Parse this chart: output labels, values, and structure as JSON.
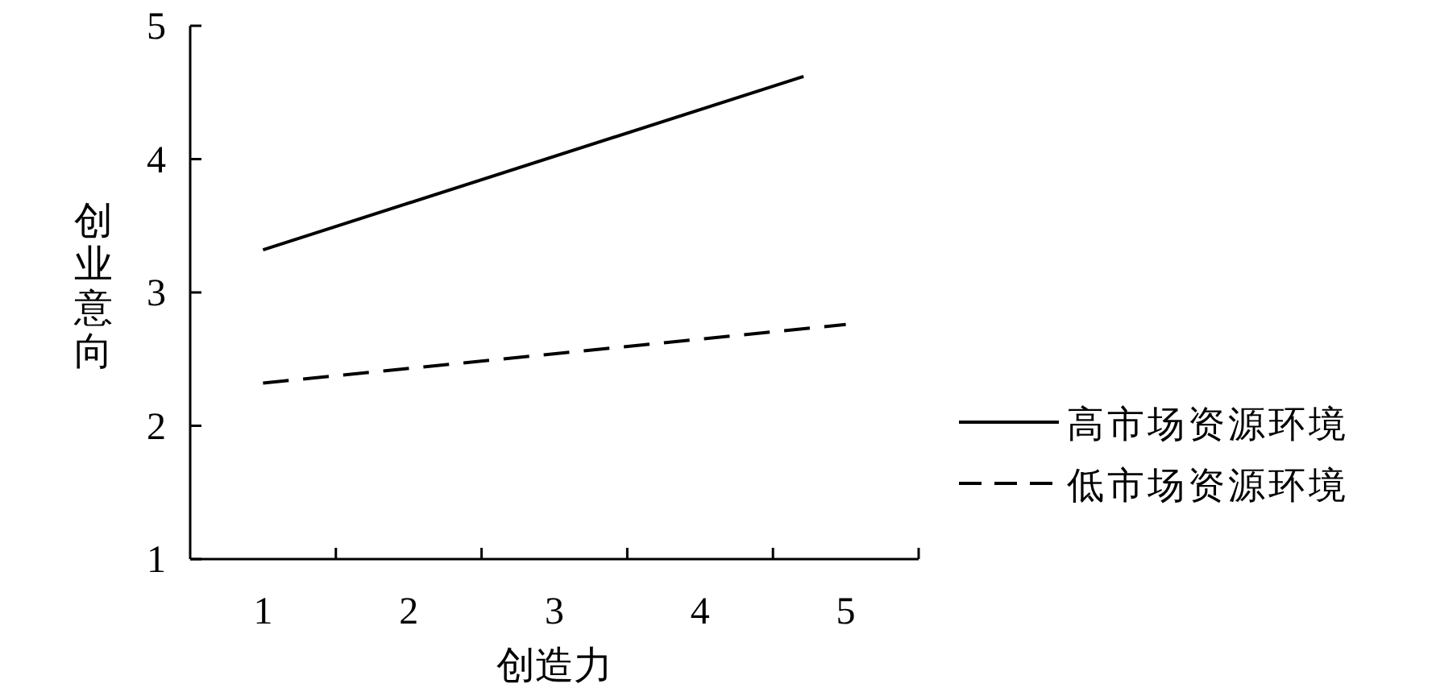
{
  "chart_data": {
    "type": "line",
    "xlabel": "创造力",
    "ylabel": "创业意向",
    "xlim": [
      0.5,
      5.5
    ],
    "ylim": [
      1,
      5
    ],
    "xticks": [
      1,
      2,
      3,
      4,
      5,
      {
        "value": 1.5,
        "label": null
      },
      {
        "value": 2.5,
        "label": null
      },
      {
        "value": 3.5,
        "label": null
      },
      {
        "value": 4.5,
        "label": null
      },
      {
        "value": 5.5,
        "label": null
      }
    ],
    "yticks": [
      1,
      2,
      3,
      4,
      5
    ],
    "legend": "right",
    "grid": false,
    "series": [
      {
        "name": "高市场资源环境",
        "color": "#000000",
        "line_style": "solid",
        "x": [
          1,
          4.71
        ],
        "values": [
          3.32,
          4.62
        ]
      },
      {
        "name": "低市场资源环境",
        "color": "#000000",
        "line_style": "dashed",
        "x": [
          1,
          5
        ],
        "values": [
          2.32,
          2.76
        ]
      }
    ]
  }
}
